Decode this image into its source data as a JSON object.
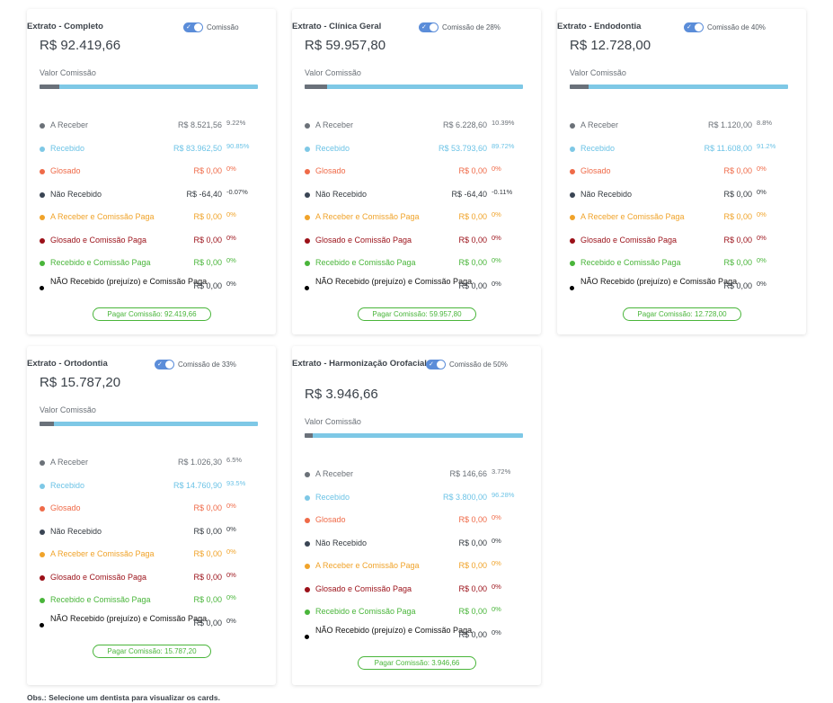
{
  "obs": "Obs.: Selecione um dentista para visualizar os cards.",
  "valor_comissao_label": "Valor Comissão",
  "row_labels": {
    "a_receber": "A Receber",
    "recebido": "Recebido",
    "glosado": "Glosado",
    "nao_recebido": "Não Recebido",
    "a_receber_comissao_paga": "A Receber e Comissão Paga",
    "glosado_comissao_paga": "Glosado e Comissão Paga",
    "recebido_comissao_paga": "Recebido e Comissão Paga",
    "nao_recebido_prejuizo": "NÃO Recebido (prejuízo) e Comissão Paga"
  },
  "cards": [
    {
      "title": "Extrato - Completo",
      "toggle_label": "Comissão",
      "toggle_on": true,
      "total": "R$ 92.419,66",
      "bar_dark_fraction": 0.0922,
      "rows": [
        {
          "value": "R$ 8.521,56",
          "pct": "9.22%"
        },
        {
          "value": "R$ 83.962,50",
          "pct": "90.85%"
        },
        {
          "value": "R$ 0,00",
          "pct": "0%"
        },
        {
          "value": "R$ -64,40",
          "pct": "-0.07%"
        },
        {
          "value": "R$ 0,00",
          "pct": "0%"
        },
        {
          "value": "R$ 0,00",
          "pct": "0%"
        },
        {
          "value": "R$ 0,00",
          "pct": "0%"
        },
        {
          "value": "R$ 0,00",
          "pct": "0%"
        }
      ],
      "pay_button": "Pagar Comissão: 92.419,66"
    },
    {
      "title": "Extrato - Clínica Geral",
      "toggle_label": "Comissão de 28%",
      "toggle_on": true,
      "total": "R$ 59.957,80",
      "bar_dark_fraction": 0.1039,
      "rows": [
        {
          "value": "R$ 6.228,60",
          "pct": "10.39%"
        },
        {
          "value": "R$ 53.793,60",
          "pct": "89.72%"
        },
        {
          "value": "R$ 0,00",
          "pct": "0%"
        },
        {
          "value": "R$ -64,40",
          "pct": "-0.11%"
        },
        {
          "value": "R$ 0,00",
          "pct": "0%"
        },
        {
          "value": "R$ 0,00",
          "pct": "0%"
        },
        {
          "value": "R$ 0,00",
          "pct": "0%"
        },
        {
          "value": "R$ 0,00",
          "pct": "0%"
        }
      ],
      "pay_button": "Pagar Comissão: 59.957,80"
    },
    {
      "title": "Extrato - Endodontia",
      "toggle_label": "Comissão de 40%",
      "toggle_on": true,
      "total": "R$ 12.728,00",
      "bar_dark_fraction": 0.088,
      "rows": [
        {
          "value": "R$ 1.120,00",
          "pct": "8.8%"
        },
        {
          "value": "R$ 11.608,00",
          "pct": "91.2%"
        },
        {
          "value": "R$ 0,00",
          "pct": "0%"
        },
        {
          "value": "R$ 0,00",
          "pct": "0%"
        },
        {
          "value": "R$ 0,00",
          "pct": "0%"
        },
        {
          "value": "R$ 0,00",
          "pct": "0%"
        },
        {
          "value": "R$ 0,00",
          "pct": "0%"
        },
        {
          "value": "R$ 0,00",
          "pct": "0%"
        }
      ],
      "pay_button": "Pagar Comissão: 12.728,00"
    },
    {
      "title": "Extrato - Ortodontia",
      "toggle_label": "Comissão de 33%",
      "toggle_on": true,
      "total": "R$ 15.787,20",
      "bar_dark_fraction": 0.065,
      "rows": [
        {
          "value": "R$ 1.026,30",
          "pct": "6.5%"
        },
        {
          "value": "R$ 14.760,90",
          "pct": "93.5%"
        },
        {
          "value": "R$ 0,00",
          "pct": "0%"
        },
        {
          "value": "R$ 0,00",
          "pct": "0%"
        },
        {
          "value": "R$ 0,00",
          "pct": "0%"
        },
        {
          "value": "R$ 0,00",
          "pct": "0%"
        },
        {
          "value": "R$ 0,00",
          "pct": "0%"
        },
        {
          "value": "R$ 0,00",
          "pct": "0%"
        }
      ],
      "pay_button": "Pagar Comissão: 15.787,20"
    },
    {
      "title": "Extrato - Harmonização Orofacial",
      "toggle_label": "Comissão de 50%",
      "toggle_on": true,
      "total": "R$ 3.946,66",
      "bar_dark_fraction": 0.0372,
      "rows": [
        {
          "value": "R$ 146,66",
          "pct": "3.72%"
        },
        {
          "value": "R$ 3.800,00",
          "pct": "96.28%"
        },
        {
          "value": "R$ 0,00",
          "pct": "0%"
        },
        {
          "value": "R$ 0,00",
          "pct": "0%"
        },
        {
          "value": "R$ 0,00",
          "pct": "0%"
        },
        {
          "value": "R$ 0,00",
          "pct": "0%"
        },
        {
          "value": "R$ 0,00",
          "pct": "0%"
        },
        {
          "value": "R$ 0,00",
          "pct": "0%"
        }
      ],
      "pay_button": "Pagar Comissão: 3.946,66"
    }
  ]
}
